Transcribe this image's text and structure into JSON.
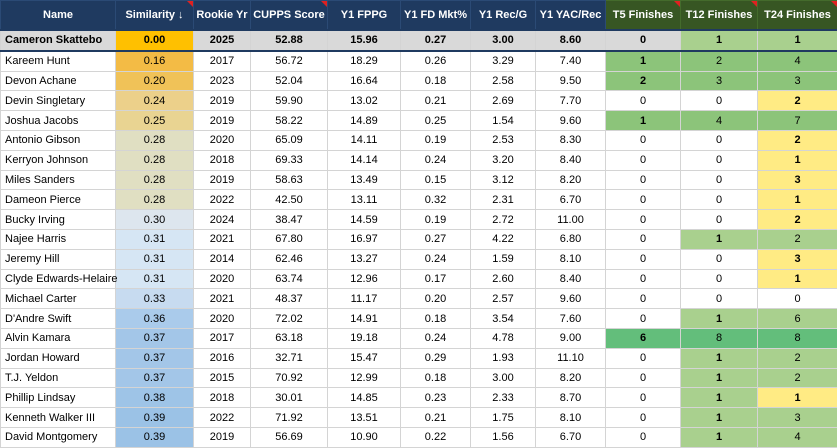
{
  "table": {
    "header": [
      "Name",
      "Similarity ↓",
      "Rookie Yr",
      "CUPPS Score",
      "Y1 FPPG",
      "Y1 FD Mkt%",
      "Y1 Rec/G",
      "Y1 YAC/Rec",
      "T5 Finishes",
      "T12 Finishes",
      "T24 Finishes"
    ],
    "rows": [
      [
        "Cameron Skattebo",
        "0.00",
        "2025",
        "52.88",
        "15.96",
        "0.27",
        "3.00",
        "8.60",
        "0",
        "1",
        "1"
      ],
      [
        "Kareem Hunt",
        "0.16",
        "2017",
        "56.72",
        "18.29",
        "0.26",
        "3.29",
        "7.40",
        "1",
        "2",
        "4"
      ],
      [
        "Devon Achane",
        "0.20",
        "2023",
        "52.04",
        "16.64",
        "0.18",
        "2.58",
        "9.50",
        "2",
        "3",
        "3"
      ],
      [
        "Devin Singletary",
        "0.24",
        "2019",
        "59.90",
        "13.02",
        "0.21",
        "2.69",
        "7.70",
        "0",
        "0",
        "2"
      ],
      [
        "Joshua Jacobs",
        "0.25",
        "2019",
        "58.22",
        "14.89",
        "0.25",
        "1.54",
        "9.60",
        "1",
        "4",
        "7"
      ],
      [
        "Antonio Gibson",
        "0.28",
        "2020",
        "65.09",
        "14.11",
        "0.19",
        "2.53",
        "8.30",
        "0",
        "0",
        "2"
      ],
      [
        "Kerryon Johnson",
        "0.28",
        "2018",
        "69.33",
        "14.14",
        "0.24",
        "3.20",
        "8.40",
        "0",
        "0",
        "1"
      ],
      [
        "Miles Sanders",
        "0.28",
        "2019",
        "58.63",
        "13.49",
        "0.15",
        "3.12",
        "8.20",
        "0",
        "0",
        "3"
      ],
      [
        "Dameon Pierce",
        "0.28",
        "2022",
        "42.50",
        "13.11",
        "0.32",
        "2.31",
        "6.70",
        "0",
        "0",
        "1"
      ],
      [
        "Bucky Irving",
        "0.30",
        "2024",
        "38.47",
        "14.59",
        "0.19",
        "2.72",
        "11.00",
        "0",
        "0",
        "2"
      ],
      [
        "Najee Harris",
        "0.31",
        "2021",
        "67.80",
        "16.97",
        "0.27",
        "4.22",
        "6.80",
        "0",
        "1",
        "2"
      ],
      [
        "Jeremy Hill",
        "0.31",
        "2014",
        "62.46",
        "13.27",
        "0.24",
        "1.59",
        "8.10",
        "0",
        "0",
        "3"
      ],
      [
        "Clyde Edwards-Helaire",
        "0.31",
        "2020",
        "63.74",
        "12.96",
        "0.17",
        "2.60",
        "8.40",
        "0",
        "0",
        "1"
      ],
      [
        "Michael Carter",
        "0.33",
        "2021",
        "48.37",
        "11.17",
        "0.20",
        "2.57",
        "9.60",
        "0",
        "0",
        "0"
      ],
      [
        "D'Andre Swift",
        "0.36",
        "2020",
        "72.02",
        "14.91",
        "0.18",
        "3.54",
        "7.60",
        "0",
        "1",
        "6"
      ],
      [
        "Alvin Kamara",
        "0.37",
        "2017",
        "63.18",
        "19.18",
        "0.24",
        "4.78",
        "9.00",
        "6",
        "8",
        "8"
      ],
      [
        "Jordan Howard",
        "0.37",
        "2016",
        "32.71",
        "15.47",
        "0.29",
        "1.93",
        "11.10",
        "0",
        "1",
        "2"
      ],
      [
        "T.J. Yeldon",
        "0.37",
        "2015",
        "70.92",
        "12.99",
        "0.18",
        "3.00",
        "8.20",
        "0",
        "1",
        "2"
      ],
      [
        "Phillip Lindsay",
        "0.38",
        "2018",
        "30.01",
        "14.85",
        "0.23",
        "2.33",
        "8.70",
        "0",
        "1",
        "1"
      ],
      [
        "Kenneth Walker III",
        "0.39",
        "2022",
        "71.92",
        "13.51",
        "0.21",
        "1.75",
        "8.10",
        "0",
        "1",
        "3"
      ],
      [
        "David Montgomery",
        "0.39",
        "2019",
        "56.69",
        "10.90",
        "0.22",
        "1.56",
        "6.70",
        "0",
        "1",
        "4"
      ]
    ]
  }
}
